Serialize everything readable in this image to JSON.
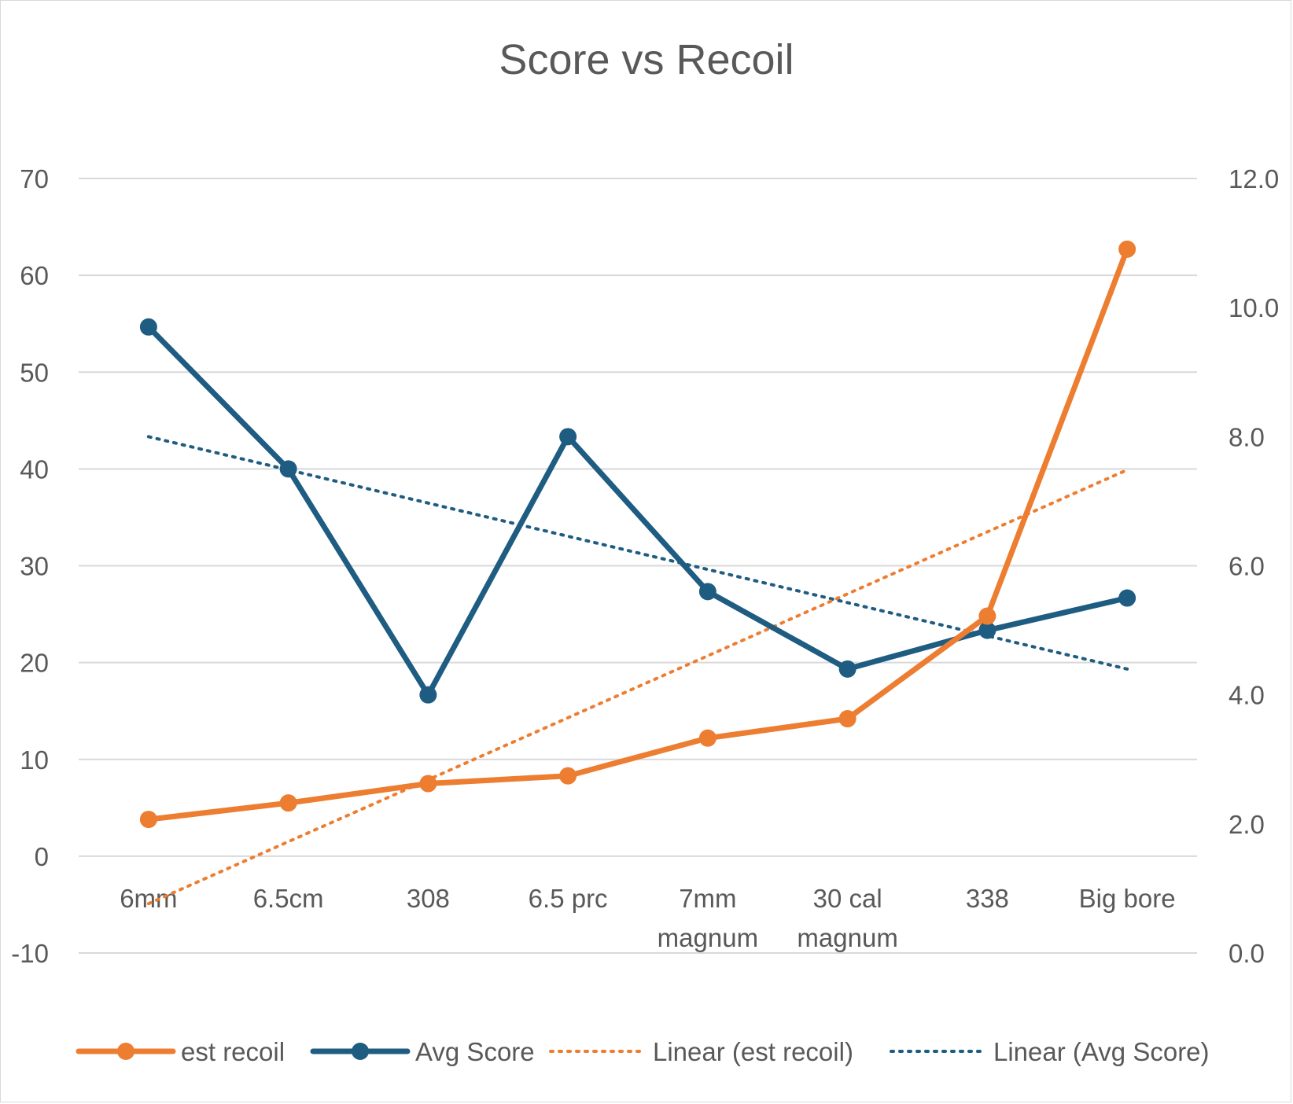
{
  "chart_data": {
    "type": "line",
    "title": "Score vs Recoil",
    "categories": [
      "6mm",
      "6.5cm",
      "308",
      "6.5 prc",
      "7mm magnum",
      "30 cal magnum",
      "338",
      "Big bore"
    ],
    "category_lines": [
      [
        "6mm"
      ],
      [
        "6.5cm"
      ],
      [
        "308"
      ],
      [
        "6.5 prc"
      ],
      [
        "7mm",
        "magnum"
      ],
      [
        "30 cal",
        "magnum"
      ],
      [
        "338"
      ],
      [
        "Big bore"
      ]
    ],
    "y_left": {
      "ylim": [
        -10,
        70
      ],
      "ticks": [
        -10,
        0,
        10,
        20,
        30,
        40,
        50,
        60,
        70
      ],
      "tick_labels": [
        "-10",
        "0",
        "10",
        "20",
        "30",
        "40",
        "50",
        "60",
        "70"
      ]
    },
    "y_right": {
      "ylim": [
        0,
        12
      ],
      "ticks": [
        0,
        2,
        4,
        6,
        8,
        10,
        12
      ],
      "tick_labels": [
        "0.0",
        "2.0",
        "4.0",
        "6.0",
        "8.0",
        "10.0",
        "12.0"
      ]
    },
    "grid": true,
    "legend_position": "bottom",
    "series": [
      {
        "name": "est recoil",
        "axis": "left",
        "color": "#ED7D31",
        "style": "line-markers",
        "values": [
          3.8,
          5.5,
          7.5,
          8.3,
          12.2,
          14.2,
          24.8,
          62.7
        ]
      },
      {
        "name": "Avg Score",
        "axis": "right",
        "color": "#1F5C82",
        "style": "line-markers",
        "values": [
          9.7,
          7.5,
          4.0,
          8.0,
          5.6,
          4.4,
          5.0,
          5.5
        ]
      },
      {
        "name": "Linear (est recoil)",
        "axis": "left",
        "color": "#ED7D31",
        "style": "dotted-trend",
        "values": [
          -4.9,
          1.5,
          7.9,
          14.3,
          20.7,
          27.1,
          33.5,
          39.9
        ]
      },
      {
        "name": "Linear (Avg Score)",
        "axis": "right",
        "color": "#1F5C82",
        "style": "dotted-trend",
        "values": [
          8.0,
          7.5,
          7.0,
          6.5,
          6.0,
          5.4,
          4.9,
          4.4
        ]
      }
    ]
  }
}
